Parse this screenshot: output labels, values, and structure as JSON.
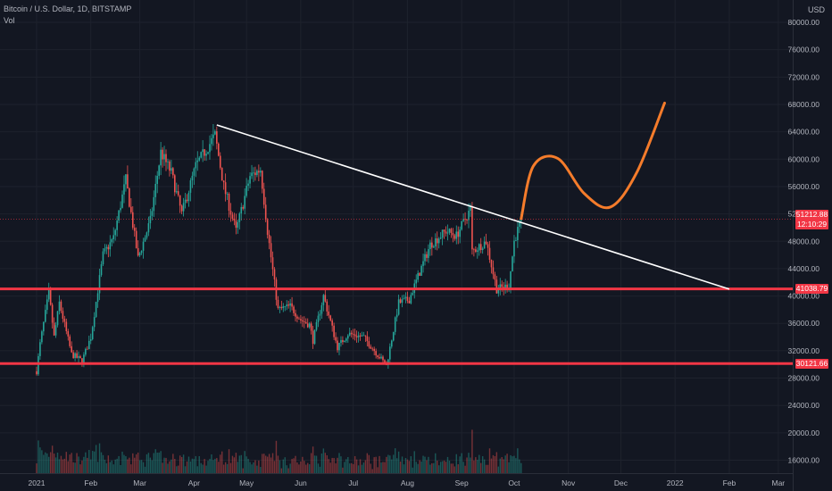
{
  "header": {
    "symbol_line": "Bitcoin / U.S. Dollar, 1D, BITSTAMP",
    "indicator": "Vol",
    "currency": "USD"
  },
  "chart_data": {
    "type": "candlestick",
    "symbol": "Bitcoin / U.S. Dollar",
    "interval": "1D",
    "exchange": "BITSTAMP",
    "y_axis_ticks": [
      "80000.00",
      "76000.00",
      "72000.00",
      "68000.00",
      "64000.00",
      "60000.00",
      "56000.00",
      "52000.00",
      "48000.00",
      "44000.00",
      "40000.00",
      "36000.00",
      "32000.00",
      "28000.00",
      "24000.00",
      "20000.00",
      "16000.00"
    ],
    "x_axis_ticks": [
      "2021",
      "Feb",
      "Mar",
      "Apr",
      "May",
      "Jun",
      "Jul",
      "Aug",
      "Sep",
      "Oct",
      "Nov",
      "Dec",
      "2022",
      "Feb",
      "Mar"
    ],
    "price_series_approx": [
      [
        "2021-01-01",
        29000
      ],
      [
        "2021-01-03",
        33000
      ],
      [
        "2021-01-08",
        40500
      ],
      [
        "2021-01-11",
        34000
      ],
      [
        "2021-01-14",
        39000
      ],
      [
        "2021-01-21",
        31500
      ],
      [
        "2021-01-27",
        30500
      ],
      [
        "2021-02-01",
        34000
      ],
      [
        "2021-02-08",
        46000
      ],
      [
        "2021-02-14",
        48500
      ],
      [
        "2021-02-21",
        57000
      ],
      [
        "2021-02-28",
        45500
      ],
      [
        "2021-03-07",
        51000
      ],
      [
        "2021-03-13",
        61000
      ],
      [
        "2021-03-19",
        58000
      ],
      [
        "2021-03-25",
        52000
      ],
      [
        "2021-04-02",
        59000
      ],
      [
        "2021-04-13",
        63500
      ],
      [
        "2021-04-18",
        56000
      ],
      [
        "2021-04-25",
        49500
      ],
      [
        "2021-05-03",
        57500
      ],
      [
        "2021-05-09",
        58500
      ],
      [
        "2021-05-13",
        49500
      ],
      [
        "2021-05-19",
        38000
      ],
      [
        "2021-05-26",
        38500
      ],
      [
        "2021-06-01",
        36500
      ],
      [
        "2021-06-06",
        35800
      ],
      [
        "2021-06-08",
        33500
      ],
      [
        "2021-06-14",
        40000
      ],
      [
        "2021-06-22",
        32500
      ],
      [
        "2021-06-28",
        34500
      ],
      [
        "2021-07-07",
        34000
      ],
      [
        "2021-07-20",
        29800
      ],
      [
        "2021-07-27",
        39000
      ],
      [
        "2021-08-02",
        39500
      ],
      [
        "2021-08-14",
        47500
      ],
      [
        "2021-08-23",
        49500
      ],
      [
        "2021-08-29",
        48800
      ],
      [
        "2021-09-06",
        52700
      ],
      [
        "2021-09-07",
        46500
      ],
      [
        "2021-09-15",
        48000
      ],
      [
        "2021-09-21",
        41000
      ],
      [
        "2021-09-28",
        41500
      ],
      [
        "2021-10-01",
        48000
      ],
      [
        "2021-10-05",
        51212.88
      ]
    ],
    "last_price": "51212.88",
    "countdown": "12:10:29",
    "support_levels": [
      {
        "label": "41038.79",
        "price": 41038.79,
        "color": "#f23645"
      },
      {
        "label": "30121.66",
        "price": 30121.66,
        "color": "#f23645"
      }
    ],
    "trendline": {
      "from": [
        "2021-04-14",
        65000
      ],
      "to": [
        "2022-02-01",
        41000
      ],
      "color": "#ffffff"
    },
    "projection_path": [
      [
        "2021-10-05",
        51300
      ],
      [
        "2021-10-12",
        59000
      ],
      [
        "2021-10-26",
        60100
      ],
      [
        "2021-11-10",
        55000
      ],
      [
        "2021-11-25",
        53000
      ],
      [
        "2021-12-10",
        58000
      ],
      [
        "2021-12-26",
        68200
      ]
    ],
    "projection_color": "#f57c2b",
    "colors": {
      "up": "#26a69a",
      "down": "#ef5350",
      "background": "#131722"
    },
    "grid": true,
    "ylim": [
      15000,
      82000
    ]
  }
}
